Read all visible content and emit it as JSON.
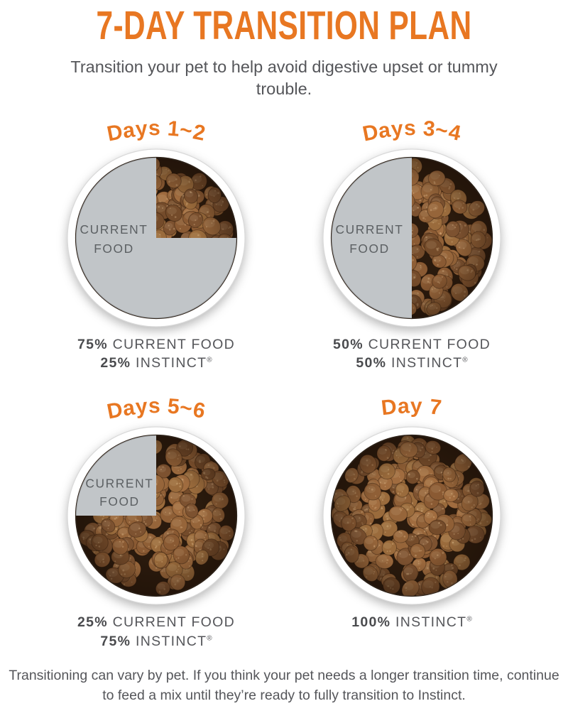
{
  "page": {
    "title": "7-DAY TRANSITION PLAN",
    "subtitle": "Transition your pet to help avoid digestive upset or tummy trouble.",
    "footer": "Transitioning can vary by pet. If you think your pet needs a longer transition time, continue to feed a mix until they’re ready to fully transition to Instinct."
  },
  "colors": {
    "accent_orange": "#E87722",
    "text_gray": "#55565A",
    "pie_gray": "#C1C5C8",
    "pie_label_gray": "#5C6063",
    "bowl_rim_white": "#FFFFFF",
    "bowl_rim_edge": "#D9D9D9",
    "kibble_bg": "#2A1A0D",
    "kibble_palette": [
      "#8A5A33",
      "#96653A",
      "#7D5230",
      "#A06C3F",
      "#8F5F36",
      "#744B2A",
      "#9A6B3C"
    ]
  },
  "panels": [
    {
      "day_label": "Days 1~2",
      "current_pct": 75,
      "instinct_pct": 25,
      "pie_label": [
        "CURRENT",
        "FOOD"
      ],
      "stats": [
        {
          "value": "75%",
          "label": "CURRENT FOOD"
        },
        {
          "value": "25%",
          "label": "INSTINCT",
          "reg_mark": "®"
        }
      ]
    },
    {
      "day_label": "Days 3~4",
      "current_pct": 50,
      "instinct_pct": 50,
      "pie_label": [
        "CURRENT",
        "FOOD"
      ],
      "stats": [
        {
          "value": "50%",
          "label": "CURRENT FOOD"
        },
        {
          "value": "50%",
          "label": "INSTINCT",
          "reg_mark": "®"
        }
      ]
    },
    {
      "day_label": "Days 5~6",
      "current_pct": 25,
      "instinct_pct": 75,
      "pie_label": [
        "CURRENT",
        "FOOD"
      ],
      "stats": [
        {
          "value": "25%",
          "label": "CURRENT FOOD"
        },
        {
          "value": "75%",
          "label": "INSTINCT",
          "reg_mark": "®"
        }
      ]
    },
    {
      "day_label": "Day 7",
      "current_pct": 0,
      "instinct_pct": 100,
      "pie_label": [],
      "stats": [
        {
          "value": "100%",
          "label": "INSTINCT",
          "reg_mark": "®"
        }
      ]
    }
  ],
  "chart_data": [
    {
      "type": "pie",
      "title": "Days 1~2",
      "labels": [
        "CURRENT FOOD",
        "INSTINCT"
      ],
      "values": [
        75,
        25
      ]
    },
    {
      "type": "pie",
      "title": "Days 3~4",
      "labels": [
        "CURRENT FOOD",
        "INSTINCT"
      ],
      "values": [
        50,
        50
      ]
    },
    {
      "type": "pie",
      "title": "Days 5~6",
      "labels": [
        "CURRENT FOOD",
        "INSTINCT"
      ],
      "values": [
        25,
        75
      ]
    },
    {
      "type": "pie",
      "title": "Day 7",
      "labels": [
        "CURRENT FOOD",
        "INSTINCT"
      ],
      "values": [
        0,
        100
      ]
    }
  ]
}
